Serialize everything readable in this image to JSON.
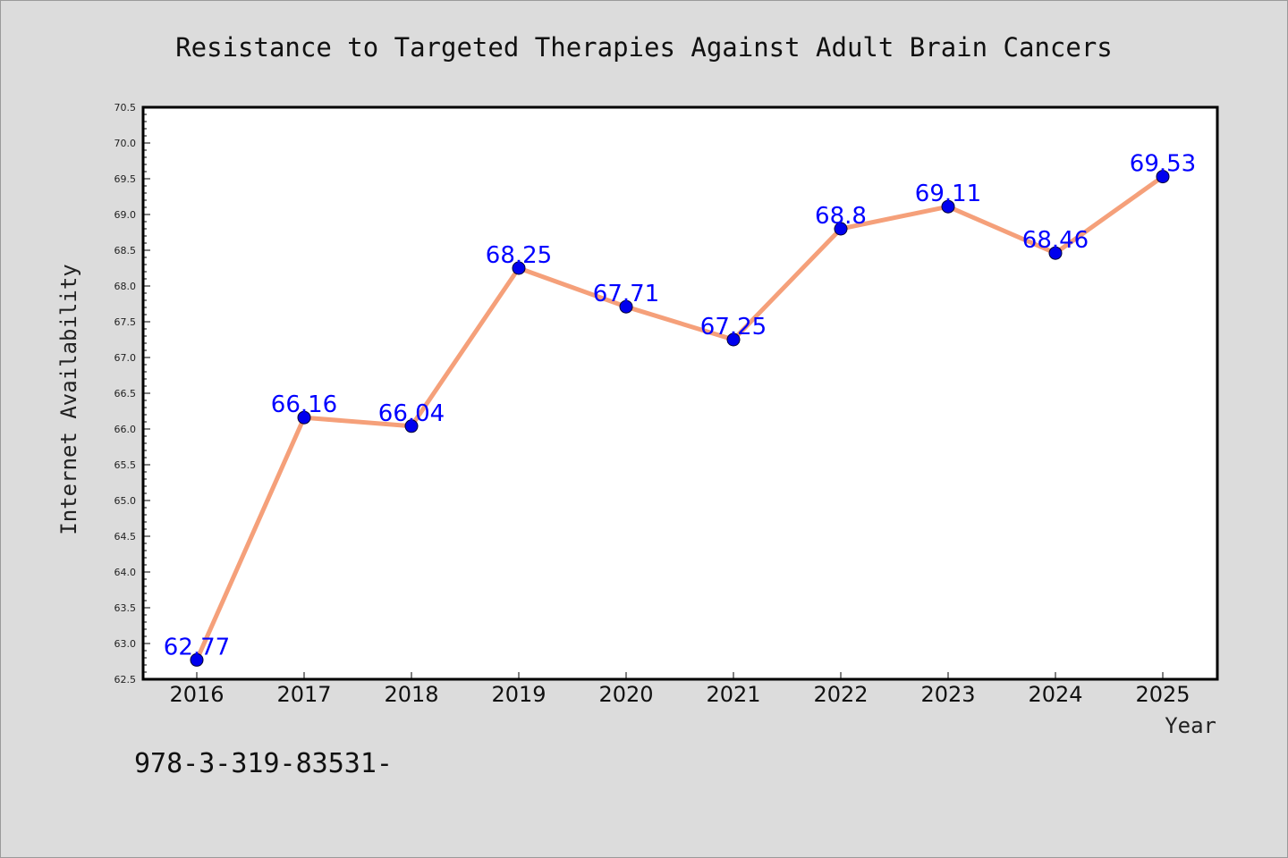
{
  "chart_data": {
    "type": "line",
    "title": "Resistance to Targeted Therapies Against Adult Brain Cancers",
    "xlabel": "Year",
    "ylabel": "Internet Availability",
    "categories": [
      "2016",
      "2017",
      "2018",
      "2019",
      "2020",
      "2021",
      "2022",
      "2023",
      "2024",
      "2025"
    ],
    "values": [
      62.77,
      66.16,
      66.04,
      68.25,
      67.71,
      67.25,
      68.8,
      69.11,
      68.46,
      69.53
    ],
    "data_labels": [
      "62.77",
      "66.16",
      "66.04",
      "68.25",
      "67.71",
      "67.25",
      "68.8",
      "69.11",
      "68.46",
      "69.53"
    ],
    "ylim": [
      62.5,
      70.5
    ],
    "yticks": [
      "62.5",
      "63.0",
      "63.5",
      "64.0",
      "64.5",
      "65.0",
      "65.5",
      "66.0",
      "66.5",
      "67.0",
      "67.5",
      "68.0",
      "68.5",
      "69.0",
      "69.5",
      "70.0",
      "70.5"
    ],
    "grid": false,
    "legend": "none",
    "line_color": "#f5a07a",
    "marker_color": "#0000ee",
    "label_color": "#0000ff"
  },
  "footer": {
    "text": "978-3-319-83531-"
  }
}
